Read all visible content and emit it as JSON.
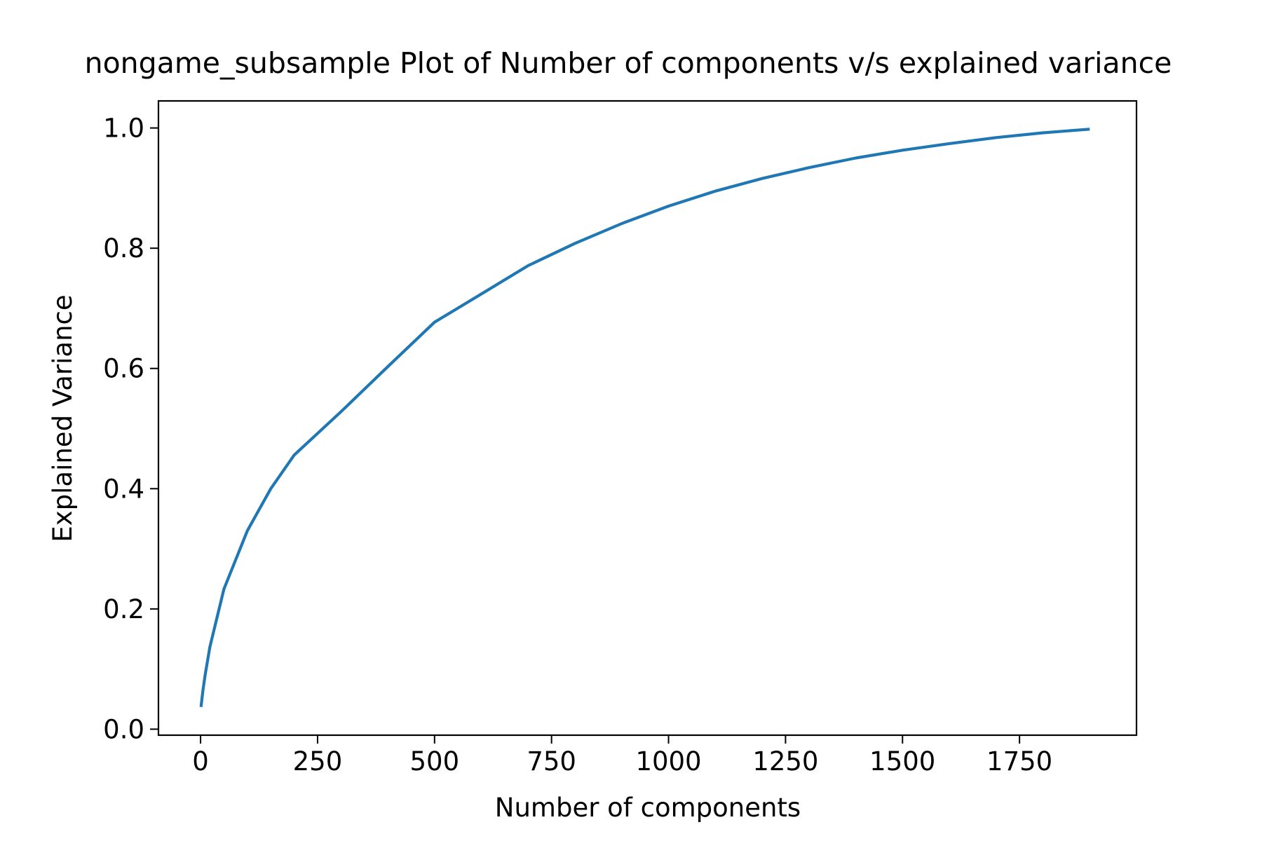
{
  "chart_data": {
    "type": "line",
    "title": "nongame_subsample Plot of Number of components v/s explained variance",
    "xlabel": "Number of components",
    "ylabel": "Explained Variance",
    "xlim": [
      -90,
      2000
    ],
    "ylim": [
      -0.01,
      1.045
    ],
    "xticks": [
      0,
      250,
      500,
      750,
      1000,
      1250,
      1500,
      1750
    ],
    "xtick_labels": [
      "0",
      "250",
      "500",
      "750",
      "1000",
      "1250",
      "1500",
      "1750"
    ],
    "yticks": [
      0.0,
      0.2,
      0.4,
      0.6,
      0.8,
      1.0
    ],
    "ytick_labels": [
      "0.0",
      "0.2",
      "0.4",
      "0.6",
      "0.8",
      "1.0"
    ],
    "grid": false,
    "legend": "none",
    "color": "#1f77b4",
    "series": [
      {
        "x": [
          1,
          5,
          10,
          20,
          50,
          100,
          150,
          200,
          300,
          400,
          500,
          600,
          700,
          800,
          900,
          1000,
          1100,
          1200,
          1300,
          1400,
          1500,
          1600,
          1700,
          1800,
          1900
        ],
        "y": [
          0.037,
          0.064,
          0.091,
          0.137,
          0.233,
          0.33,
          0.4,
          0.456,
          0.528,
          0.603,
          0.677,
          0.724,
          0.771,
          0.808,
          0.841,
          0.87,
          0.895,
          0.916,
          0.934,
          0.95,
          0.963,
          0.974,
          0.984,
          0.992,
          0.998
        ]
      }
    ]
  }
}
